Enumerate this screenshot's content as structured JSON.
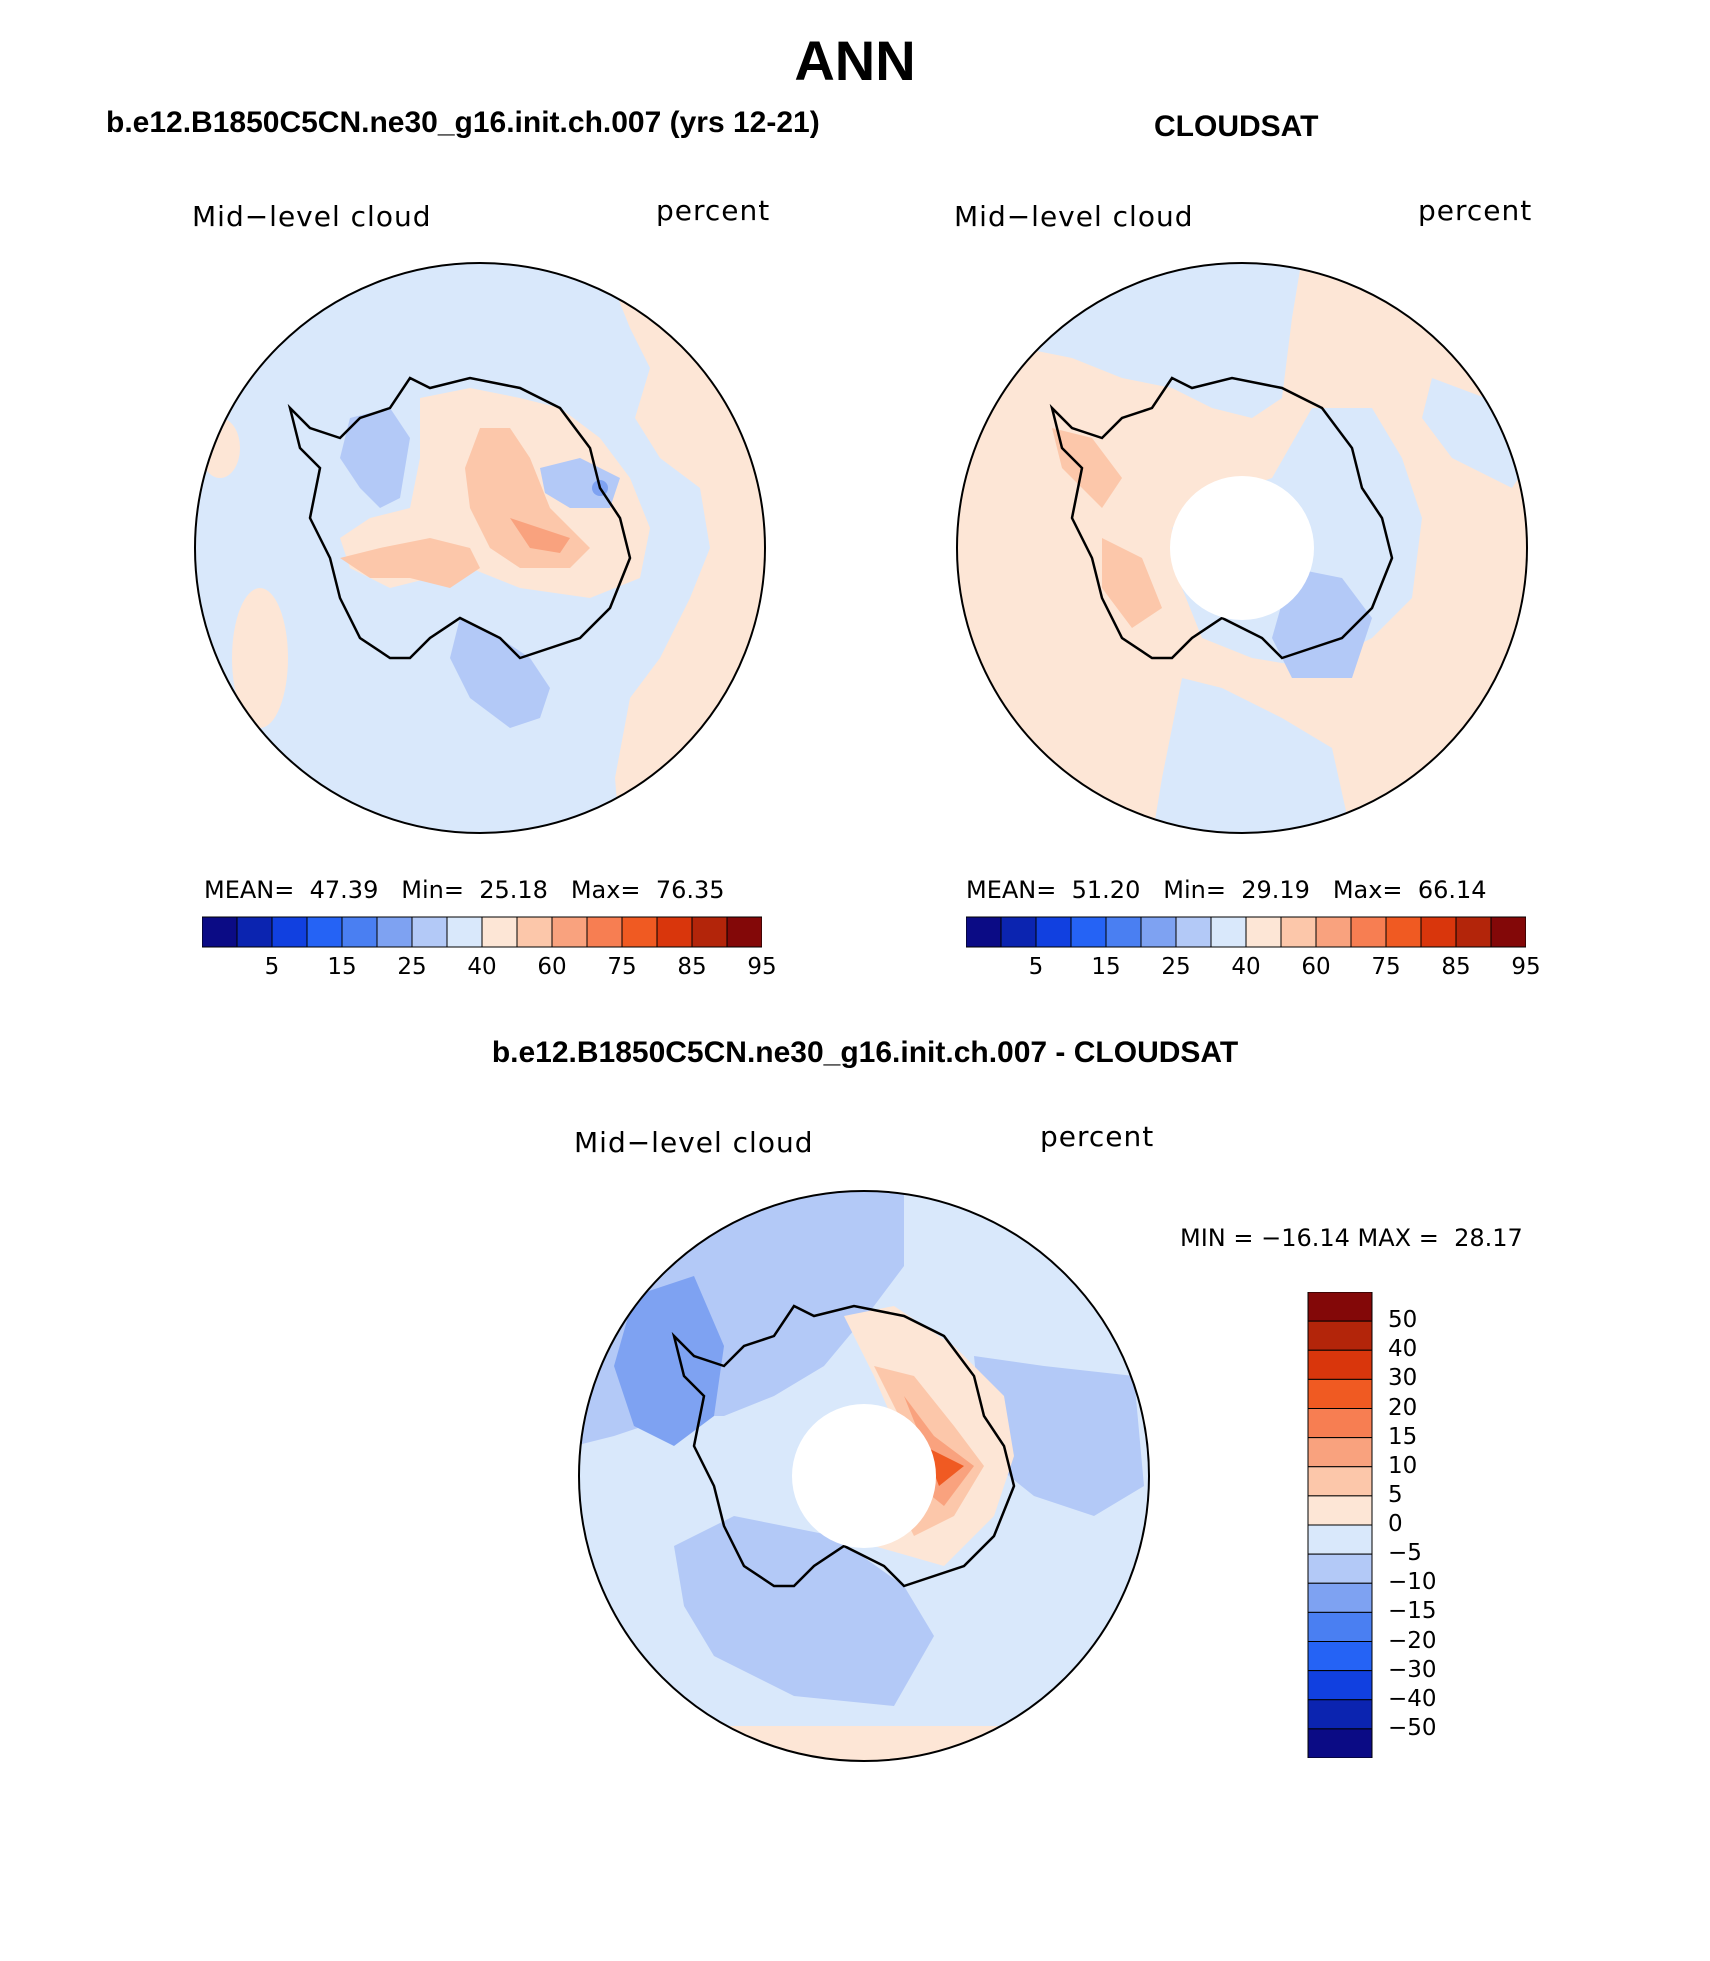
{
  "title": "ANN",
  "panels": [
    {
      "header": "b.e12.B1850C5CN.ne30_g16.init.ch.007 (yrs 12-21)",
      "variable": "Mid−level cloud",
      "units": "percent",
      "stats": {
        "mean_label": "MEAN=",
        "mean": "47.39",
        "min_label": "Min=",
        "min": "25.18",
        "max_label": "Max=",
        "max": "76.35"
      },
      "colorbar_ticks": [
        "5",
        "15",
        "25",
        "40",
        "60",
        "75",
        "85",
        "95"
      ]
    },
    {
      "header": "CLOUDSAT",
      "variable": "Mid−level cloud",
      "units": "percent",
      "stats": {
        "mean_label": "MEAN=",
        "mean": "51.20",
        "min_label": "Min=",
        "min": "29.19",
        "max_label": "Max=",
        "max": "66.14"
      },
      "colorbar_ticks": [
        "5",
        "15",
        "25",
        "40",
        "60",
        "75",
        "85",
        "95"
      ]
    }
  ],
  "difference": {
    "header": "b.e12.B1850C5CN.ne30_g16.init.ch.007 - CLOUDSAT",
    "variable": "Mid−level cloud",
    "units": "percent",
    "minmax": "MIN = −16.14 MAX =  28.17",
    "colorbar_labels": [
      "50",
      "40",
      "30",
      "20",
      "15",
      "10",
      "5",
      "0",
      "−5",
      "−10",
      "−15",
      "−20",
      "−30",
      "−40",
      "−50"
    ]
  },
  "palette": [
    "#0b0b85",
    "#0b24b0",
    "#1140e0",
    "#2563f5",
    "#4a7ff2",
    "#7ea2f2",
    "#b3c9f7",
    "#d9e8fb",
    "#fde6d6",
    "#fcc7aa",
    "#f9a27e",
    "#f77e52",
    "#f05a22",
    "#d9360c",
    "#b3250a",
    "#830808"
  ],
  "colors": {
    "land_outline": "#000000",
    "missing": "#ffffff"
  }
}
